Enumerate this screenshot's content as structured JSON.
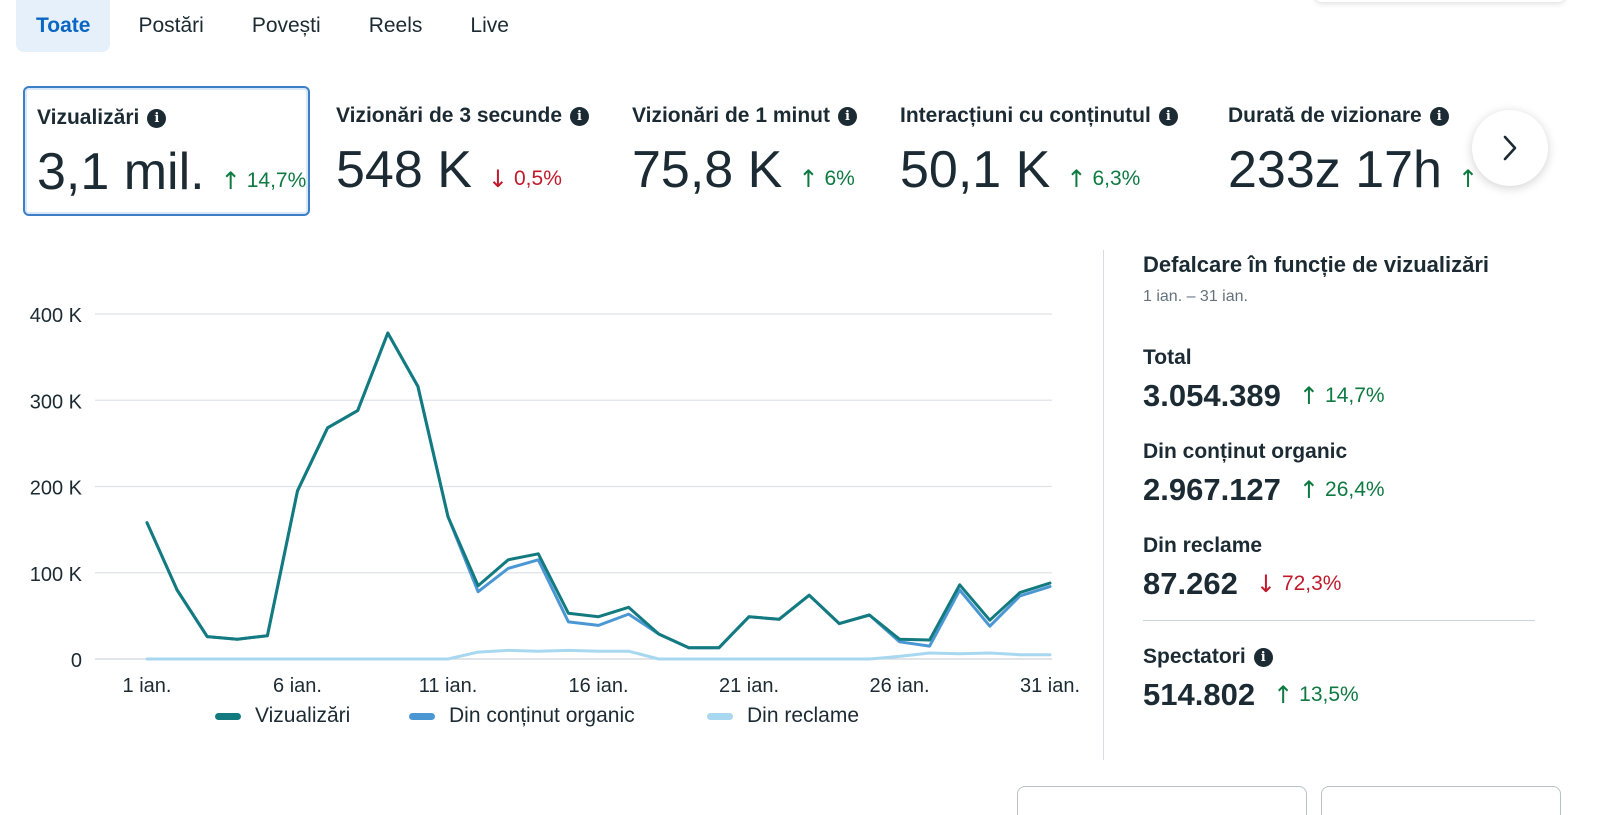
{
  "tabs": [
    {
      "label": "Toate",
      "active": true
    },
    {
      "label": "Postări",
      "active": false
    },
    {
      "label": "Povești",
      "active": false
    },
    {
      "label": "Reels",
      "active": false
    },
    {
      "label": "Live",
      "active": false
    }
  ],
  "metrics": [
    {
      "label": "Vizualizări",
      "value": "3,1 mil.",
      "change": "14,7%",
      "direction": "up",
      "selected": true
    },
    {
      "label": "Vizionări de 3 secunde",
      "value": "548 K",
      "change": "0,5%",
      "direction": "down",
      "selected": false
    },
    {
      "label": "Vizionări de 1 minut",
      "value": "75,8 K",
      "change": "6%",
      "direction": "up",
      "selected": false
    },
    {
      "label": "Interacțiuni cu conținutul",
      "value": "50,1 K",
      "change": "6,3%",
      "direction": "up",
      "selected": false
    },
    {
      "label": "Durată de vizionare",
      "value": "233z 17h",
      "change": "",
      "direction": "up",
      "selected": false
    }
  ],
  "colors": {
    "up": "#0e7a41",
    "down": "#c01a2b",
    "series_total": "#137b80",
    "series_organic": "#4a97d4",
    "series_ads": "#a8d8f0",
    "active_tab": "#0a66c2"
  },
  "chart_data": {
    "type": "line",
    "x": [
      1,
      2,
      3,
      4,
      5,
      6,
      7,
      8,
      9,
      10,
      11,
      12,
      13,
      14,
      15,
      16,
      17,
      18,
      19,
      20,
      21,
      22,
      23,
      24,
      25,
      26,
      27,
      28,
      29,
      30,
      31
    ],
    "xticks": [
      {
        "x": 1,
        "label": "1 ian."
      },
      {
        "x": 6,
        "label": "6 ian."
      },
      {
        "x": 11,
        "label": "11 ian."
      },
      {
        "x": 16,
        "label": "16 ian."
      },
      {
        "x": 21,
        "label": "21 ian."
      },
      {
        "x": 26,
        "label": "26 ian."
      },
      {
        "x": 31,
        "label": "31 ian."
      }
    ],
    "yticks": [
      {
        "y": 0,
        "label": "0"
      },
      {
        "y": 100000,
        "label": "100 K"
      },
      {
        "y": 200000,
        "label": "200 K"
      },
      {
        "y": 300000,
        "label": "300 K"
      },
      {
        "y": 400000,
        "label": "400 K"
      }
    ],
    "ylim": [
      0,
      400000
    ],
    "grid": true,
    "legend": "bottom",
    "series": [
      {
        "name": "Vizualizări",
        "color_key": "series_total",
        "values": [
          158000,
          80000,
          26000,
          23000,
          27000,
          195000,
          268000,
          288000,
          378000,
          316000,
          165000,
          85000,
          115000,
          122000,
          53000,
          49000,
          60000,
          29000,
          13000,
          13000,
          49000,
          46000,
          74000,
          41000,
          51000,
          23000,
          22000,
          86000,
          45000,
          77000,
          88000
        ]
      },
      {
        "name": "Din conținut organic",
        "color_key": "series_organic",
        "values": [
          158000,
          80000,
          26000,
          23000,
          27000,
          195000,
          268000,
          288000,
          378000,
          316000,
          165000,
          78000,
          105000,
          115000,
          43000,
          39000,
          52000,
          29000,
          13000,
          13000,
          49000,
          46000,
          74000,
          41000,
          51000,
          20000,
          15000,
          80000,
          38000,
          73000,
          84000
        ]
      },
      {
        "name": "Din reclame",
        "color_key": "series_ads",
        "values": [
          0,
          0,
          0,
          0,
          0,
          0,
          0,
          0,
          0,
          0,
          0,
          8000,
          10000,
          9000,
          10000,
          9000,
          9000,
          0,
          0,
          0,
          0,
          0,
          0,
          0,
          0,
          3000,
          7000,
          6000,
          7000,
          5000,
          5000
        ]
      }
    ]
  },
  "breakdown": {
    "title": "Defalcare în funcție de vizualizări",
    "date_range": "1 ian. – 31 ian.",
    "items": [
      {
        "label": "Total",
        "value": "3.054.389",
        "change": "14,7%",
        "direction": "up"
      },
      {
        "label": "Din conținut organic",
        "value": "2.967.127",
        "change": "26,4%",
        "direction": "up"
      },
      {
        "label": "Din reclame",
        "value": "87.262",
        "change": "72,3%",
        "direction": "down"
      }
    ],
    "viewers": {
      "label": "Spectatori",
      "value": "514.802",
      "change": "13,5%",
      "direction": "up"
    }
  }
}
